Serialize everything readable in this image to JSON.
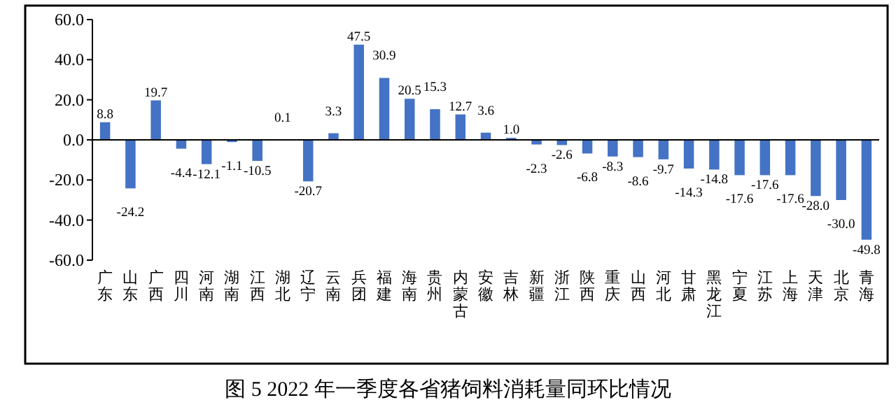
{
  "chart_data": {
    "type": "bar",
    "title": "图 5   2022 年一季度各省猪饲料消耗量同环比情况",
    "categories": [
      "广东",
      "山东",
      "广西",
      "四川",
      "河南",
      "湖南",
      "江西",
      "湖北",
      "辽宁",
      "云南",
      "兵团",
      "福建",
      "海南",
      "贵州",
      "内蒙古",
      "安徽",
      "吉林",
      "新疆",
      "浙江",
      "陕西",
      "重庆",
      "山西",
      "河北",
      "甘肃",
      "黑龙江",
      "宁夏",
      "江苏",
      "上海",
      "天津",
      "北京",
      "青海"
    ],
    "values": [
      8.8,
      -24.2,
      19.7,
      -4.4,
      -12.1,
      -1.1,
      -10.5,
      0.1,
      -20.7,
      3.3,
      47.5,
      30.9,
      20.5,
      15.3,
      12.7,
      3.6,
      1.0,
      -2.3,
      -2.6,
      -6.8,
      -8.3,
      -8.6,
      -9.7,
      -14.3,
      -14.8,
      -17.6,
      -17.6,
      -17.6,
      -28.0,
      -30.0,
      -49.8
    ],
    "value_labels": [
      "8.8",
      "-24.2",
      "19.7",
      "-4.4",
      "-12.1",
      "-1.1",
      "-10.5",
      "0.1",
      "-20.7",
      "3.3",
      "47.5",
      "30.9",
      "20.5",
      "15.3",
      "12.7",
      "3.6",
      "1.0",
      "-2.3",
      "-2.6",
      "-6.8",
      "-8.3",
      "-8.6",
      "-9.7",
      "-14.3",
      "-14.8",
      "-17.6",
      "-17.6",
      "-17.6",
      "-28.0",
      "-30.0",
      "-49.8"
    ],
    "color": "#4472c4",
    "ylim": [
      -60,
      60
    ],
    "yticks": [
      {
        "value": -60,
        "label": "-60.0"
      },
      {
        "value": -40,
        "label": "-40.0"
      },
      {
        "value": -20,
        "label": "-20.0"
      },
      {
        "value": 0,
        "label": "0.0"
      },
      {
        "value": 20,
        "label": "20.0"
      },
      {
        "value": 40,
        "label": "40.0"
      },
      {
        "value": 60,
        "label": "60.0"
      }
    ]
  }
}
